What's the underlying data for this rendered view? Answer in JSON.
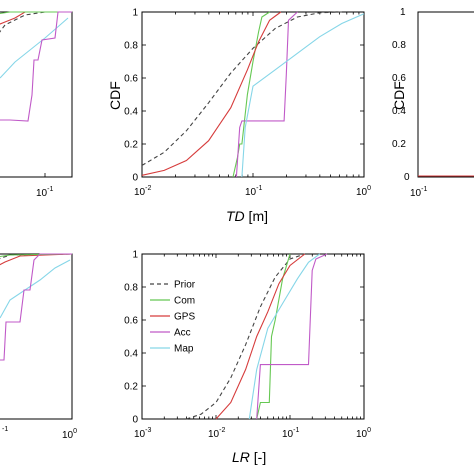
{
  "colors": {
    "Prior": "#444444",
    "Com": "#66c853",
    "GPS": "#d63c3c",
    "Acc": "#c05ac8",
    "Map": "#86d6e8"
  },
  "chart_data": [
    {
      "id": "top-left",
      "type": "line",
      "xscale": "log",
      "xticks": [
        {
          "v": -1,
          "label": "10",
          "exp": "-1"
        }
      ],
      "yticks": [],
      "ylim": [
        0,
        1
      ],
      "series": []
    },
    {
      "id": "top-middle",
      "type": "line",
      "xscale": "log",
      "xlim": [
        0.01,
        1
      ],
      "ylim": [
        0,
        1
      ],
      "xlabel_italic": "TD",
      "xlabel_unit": " [m]",
      "ylabel": "CDF",
      "xticks": [
        {
          "v": -2,
          "label": "10",
          "exp": "-2"
        },
        {
          "v": -1,
          "label": "10",
          "exp": "-1"
        },
        {
          "v": 0,
          "label": "10",
          "exp": "0"
        }
      ],
      "yticks": [
        "0",
        "0.2",
        "0.4",
        "0.6",
        "0.8",
        "1"
      ],
      "series": [
        {
          "name": "Prior",
          "dashed": true,
          "points": [
            [
              -2,
              0.07
            ],
            [
              -1.8,
              0.15
            ],
            [
              -1.6,
              0.28
            ],
            [
              -1.4,
              0.45
            ],
            [
              -1.2,
              0.63
            ],
            [
              -1,
              0.78
            ],
            [
              -0.8,
              0.9
            ],
            [
              -0.6,
              0.97
            ],
            [
              -0.4,
              0.995
            ],
            [
              -0.2,
              1
            ]
          ]
        },
        {
          "name": "Com",
          "dashed": false,
          "points": [
            [
              -1.18,
              0
            ],
            [
              -1.14,
              0.12
            ],
            [
              -1.12,
              0.2
            ],
            [
              -1.1,
              0.2
            ],
            [
              -1.05,
              0.5
            ],
            [
              -1,
              0.7
            ],
            [
              -0.95,
              0.88
            ],
            [
              -0.92,
              0.97
            ],
            [
              -0.85,
              1
            ]
          ]
        },
        {
          "name": "GPS",
          "dashed": false,
          "points": [
            [
              -2,
              0.01
            ],
            [
              -1.8,
              0.04
            ],
            [
              -1.6,
              0.1
            ],
            [
              -1.4,
              0.22
            ],
            [
              -1.2,
              0.42
            ],
            [
              -1.05,
              0.65
            ],
            [
              -0.95,
              0.82
            ],
            [
              -0.85,
              0.95
            ],
            [
              -0.75,
              1
            ]
          ]
        },
        {
          "name": "Acc",
          "dashed": false,
          "points": [
            [
              -1.15,
              0
            ],
            [
              -1.12,
              0.3
            ],
            [
              -1.1,
              0.34
            ],
            [
              -0.72,
              0.34
            ],
            [
              -0.7,
              0.62
            ],
            [
              -0.68,
              0.95
            ],
            [
              -0.6,
              1
            ]
          ]
        },
        {
          "name": "Map",
          "dashed": false,
          "points": [
            [
              -1.1,
              0
            ],
            [
              -1.07,
              0.3
            ],
            [
              -1.0,
              0.55
            ],
            [
              -0.8,
              0.65
            ],
            [
              -0.6,
              0.75
            ],
            [
              -0.4,
              0.85
            ],
            [
              -0.2,
              0.93
            ],
            [
              0,
              0.99
            ]
          ]
        }
      ]
    },
    {
      "id": "top-right",
      "type": "line",
      "xscale": "log",
      "ylim": [
        0,
        1
      ],
      "ylabel": "CDF",
      "xticks": [
        {
          "v": -1,
          "label": "10",
          "exp": "-1"
        }
      ],
      "yticks": [
        "0",
        "0.2",
        "0.4",
        "0.6",
        "0.8",
        "1"
      ],
      "series": []
    },
    {
      "id": "bottom-left",
      "type": "line",
      "xscale": "log",
      "xticks": [
        {
          "v": -1,
          "label": "",
          "exp": "-1"
        },
        {
          "v": 0,
          "label": "10",
          "exp": "0"
        }
      ],
      "ylim": [
        0,
        1
      ],
      "series": []
    },
    {
      "id": "bottom-middle",
      "type": "line",
      "xscale": "log",
      "xlim": [
        0.001,
        1
      ],
      "ylim": [
        0,
        1
      ],
      "xlabel_italic": "LR",
      "xlabel_unit": " [-]",
      "xticks": [
        {
          "v": -3,
          "label": "10",
          "exp": "-3"
        },
        {
          "v": -2,
          "label": "10",
          "exp": "-2"
        },
        {
          "v": -1,
          "label": "10",
          "exp": "-1"
        },
        {
          "v": 0,
          "label": "10",
          "exp": "0"
        }
      ],
      "yticks": [
        "0",
        "0.2",
        "0.4",
        "0.6",
        "0.8",
        "1"
      ],
      "legend": [
        "Prior",
        "Com",
        "GPS",
        "Acc",
        "Map"
      ],
      "series": [
        {
          "name": "Prior",
          "dashed": true,
          "points": [
            [
              -2.4,
              0
            ],
            [
              -2.2,
              0.03
            ],
            [
              -2,
              0.1
            ],
            [
              -1.8,
              0.25
            ],
            [
              -1.6,
              0.45
            ],
            [
              -1.4,
              0.68
            ],
            [
              -1.2,
              0.86
            ],
            [
              -1,
              0.97
            ],
            [
              -0.8,
              1
            ]
          ]
        },
        {
          "name": "Com",
          "dashed": false,
          "points": [
            [
              -1.45,
              0
            ],
            [
              -1.4,
              0.1
            ],
            [
              -1.35,
              0.1
            ],
            [
              -1.28,
              0.1
            ],
            [
              -1.25,
              0.5
            ],
            [
              -1.2,
              0.6
            ],
            [
              -1.1,
              0.85
            ],
            [
              -1.0,
              1
            ]
          ]
        },
        {
          "name": "GPS",
          "dashed": false,
          "points": [
            [
              -2.0,
              0
            ],
            [
              -1.8,
              0.1
            ],
            [
              -1.6,
              0.3
            ],
            [
              -1.45,
              0.5
            ],
            [
              -1.3,
              0.65
            ],
            [
              -1.15,
              0.82
            ],
            [
              -1.0,
              0.93
            ],
            [
              -0.8,
              1
            ]
          ]
        },
        {
          "name": "Acc",
          "dashed": false,
          "points": [
            [
              -1.45,
              0
            ],
            [
              -1.4,
              0.33
            ],
            [
              -0.75,
              0.33
            ],
            [
              -0.7,
              0.9
            ],
            [
              -0.65,
              0.97
            ],
            [
              -0.5,
              1
            ]
          ]
        },
        {
          "name": "Map",
          "dashed": false,
          "points": [
            [
              -1.55,
              0
            ],
            [
              -1.45,
              0.3
            ],
            [
              -1.3,
              0.55
            ],
            [
              -1.1,
              0.7
            ],
            [
              -0.9,
              0.85
            ],
            [
              -0.75,
              0.95
            ],
            [
              -0.6,
              1
            ]
          ]
        }
      ]
    }
  ]
}
